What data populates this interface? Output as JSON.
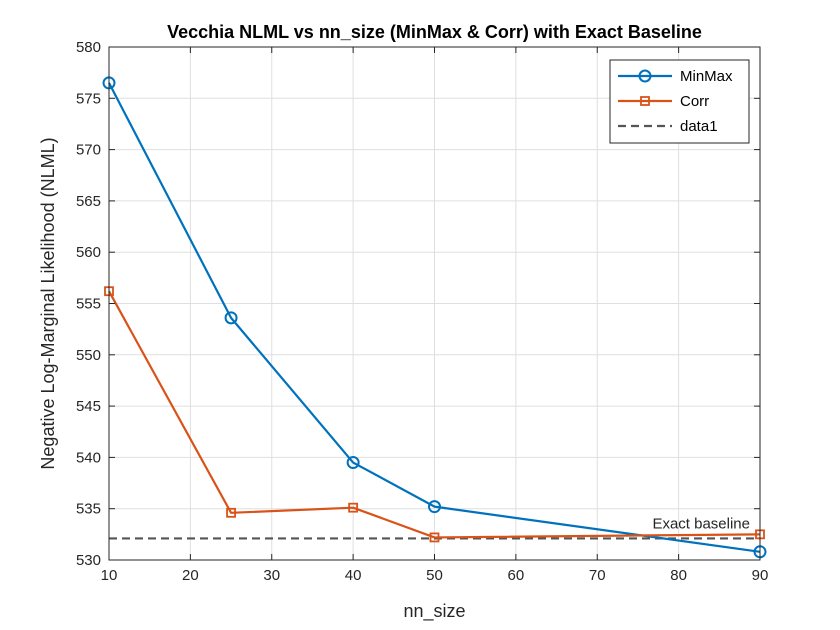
{
  "chart_data": {
    "type": "line",
    "title": "Vecchia NLML vs nn_size (MinMax & Corr) with Exact Baseline",
    "xlabel": "nn_size",
    "ylabel": "Negative Log-Marginal Likelihood (NLML)",
    "xlim": [
      10,
      90
    ],
    "ylim": [
      530,
      580
    ],
    "xticks": [
      10,
      20,
      30,
      40,
      50,
      60,
      70,
      80,
      90
    ],
    "yticks": [
      530,
      535,
      540,
      545,
      550,
      555,
      560,
      565,
      570,
      575,
      580
    ],
    "grid": true,
    "legend_position": "top-right",
    "series": [
      {
        "name": "MinMax",
        "color": "#0072BD",
        "marker": "circle",
        "x": [
          10,
          25,
          40,
          50,
          90
        ],
        "y": [
          576.5,
          553.6,
          539.5,
          535.2,
          530.8
        ]
      },
      {
        "name": "Corr",
        "color": "#D95319",
        "marker": "square",
        "x": [
          10,
          25,
          40,
          50,
          90
        ],
        "y": [
          556.2,
          534.6,
          535.1,
          532.2,
          532.5
        ]
      }
    ],
    "baseline": {
      "name": "data1",
      "value": 532.1,
      "color": "#555555",
      "style": "dashed",
      "annotation": "Exact baseline"
    }
  }
}
